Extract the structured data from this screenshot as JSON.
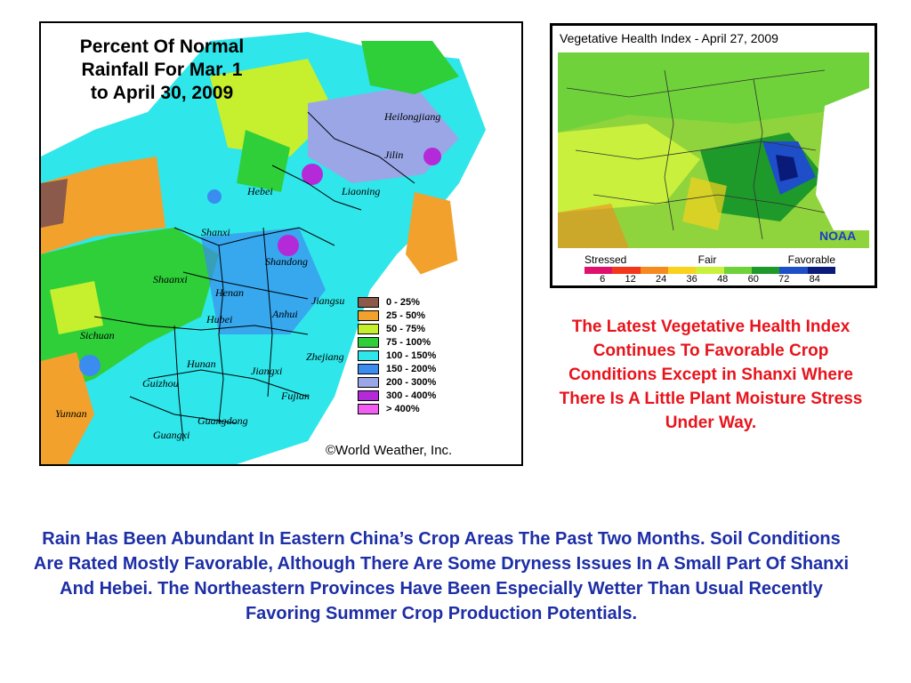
{
  "rainfall_map": {
    "title_lines": [
      "Percent Of Normal",
      "Rainfall For Mar. 1",
      "to April 30, 2009"
    ],
    "provinces": [
      "Heilongjiang",
      "Jilin",
      "Liaoning",
      "Hebei",
      "Shanxi",
      "Shandong",
      "Shaanxi",
      "Henan",
      "Jiangsu",
      "Hubei",
      "Anhui",
      "Sichuan",
      "Zhejiang",
      "Hunan",
      "Jiangxi",
      "Guizhou",
      "Fujian",
      "Yunnan",
      "Guangdong",
      "Guangxi"
    ],
    "legend": [
      {
        "label": "0  -  25%",
        "color": "#8b5a4a"
      },
      {
        "label": "25  -  50%",
        "color": "#f2a12c"
      },
      {
        "label": "50  -  75%",
        "color": "#c6ef2e"
      },
      {
        "label": "75  -  100%",
        "color": "#2fcf3a"
      },
      {
        "label": "100  -  150%",
        "color": "#2fe6ea"
      },
      {
        "label": "150  -  200%",
        "color": "#3a8cf0"
      },
      {
        "label": "200  -  300%",
        "color": "#9aa6e6"
      },
      {
        "label": "300  -  400%",
        "color": "#b52ad8"
      },
      {
        "label": "> 400%",
        "color": "#f25ef2"
      }
    ],
    "copyright": "©World Weather, Inc."
  },
  "vhi_map": {
    "title": "Vegetative Health Index - April 27, 2009",
    "agency": "NOAA",
    "scale_words": [
      "Stressed",
      "Fair",
      "Favorable"
    ],
    "scale_ticks": [
      "6",
      "12",
      "24",
      "36",
      "48",
      "60",
      "72",
      "84"
    ],
    "scale_colors": [
      "#e0106e",
      "#f2381c",
      "#f58a1e",
      "#f8d21c",
      "#c8f03c",
      "#6fd23a",
      "#1e9a2a",
      "#1e4ec8",
      "#0a1a78"
    ]
  },
  "red_caption": "The Latest Vegetative Health Index Continues To Favorable Crop Conditions Except in Shanxi Where There Is A Little Plant Moisture Stress Under Way.",
  "blue_caption": "Rain Has Been Abundant In Eastern China’s Crop Areas The Past Two Months. Soil Conditions Are Rated Mostly Favorable, Although There Are Some Dryness Issues In A Small Part Of Shanxi And Hebei. The Northeastern Provinces Have Been Especially Wetter Than Usual Recently Favoring Summer Crop Production Potentials."
}
